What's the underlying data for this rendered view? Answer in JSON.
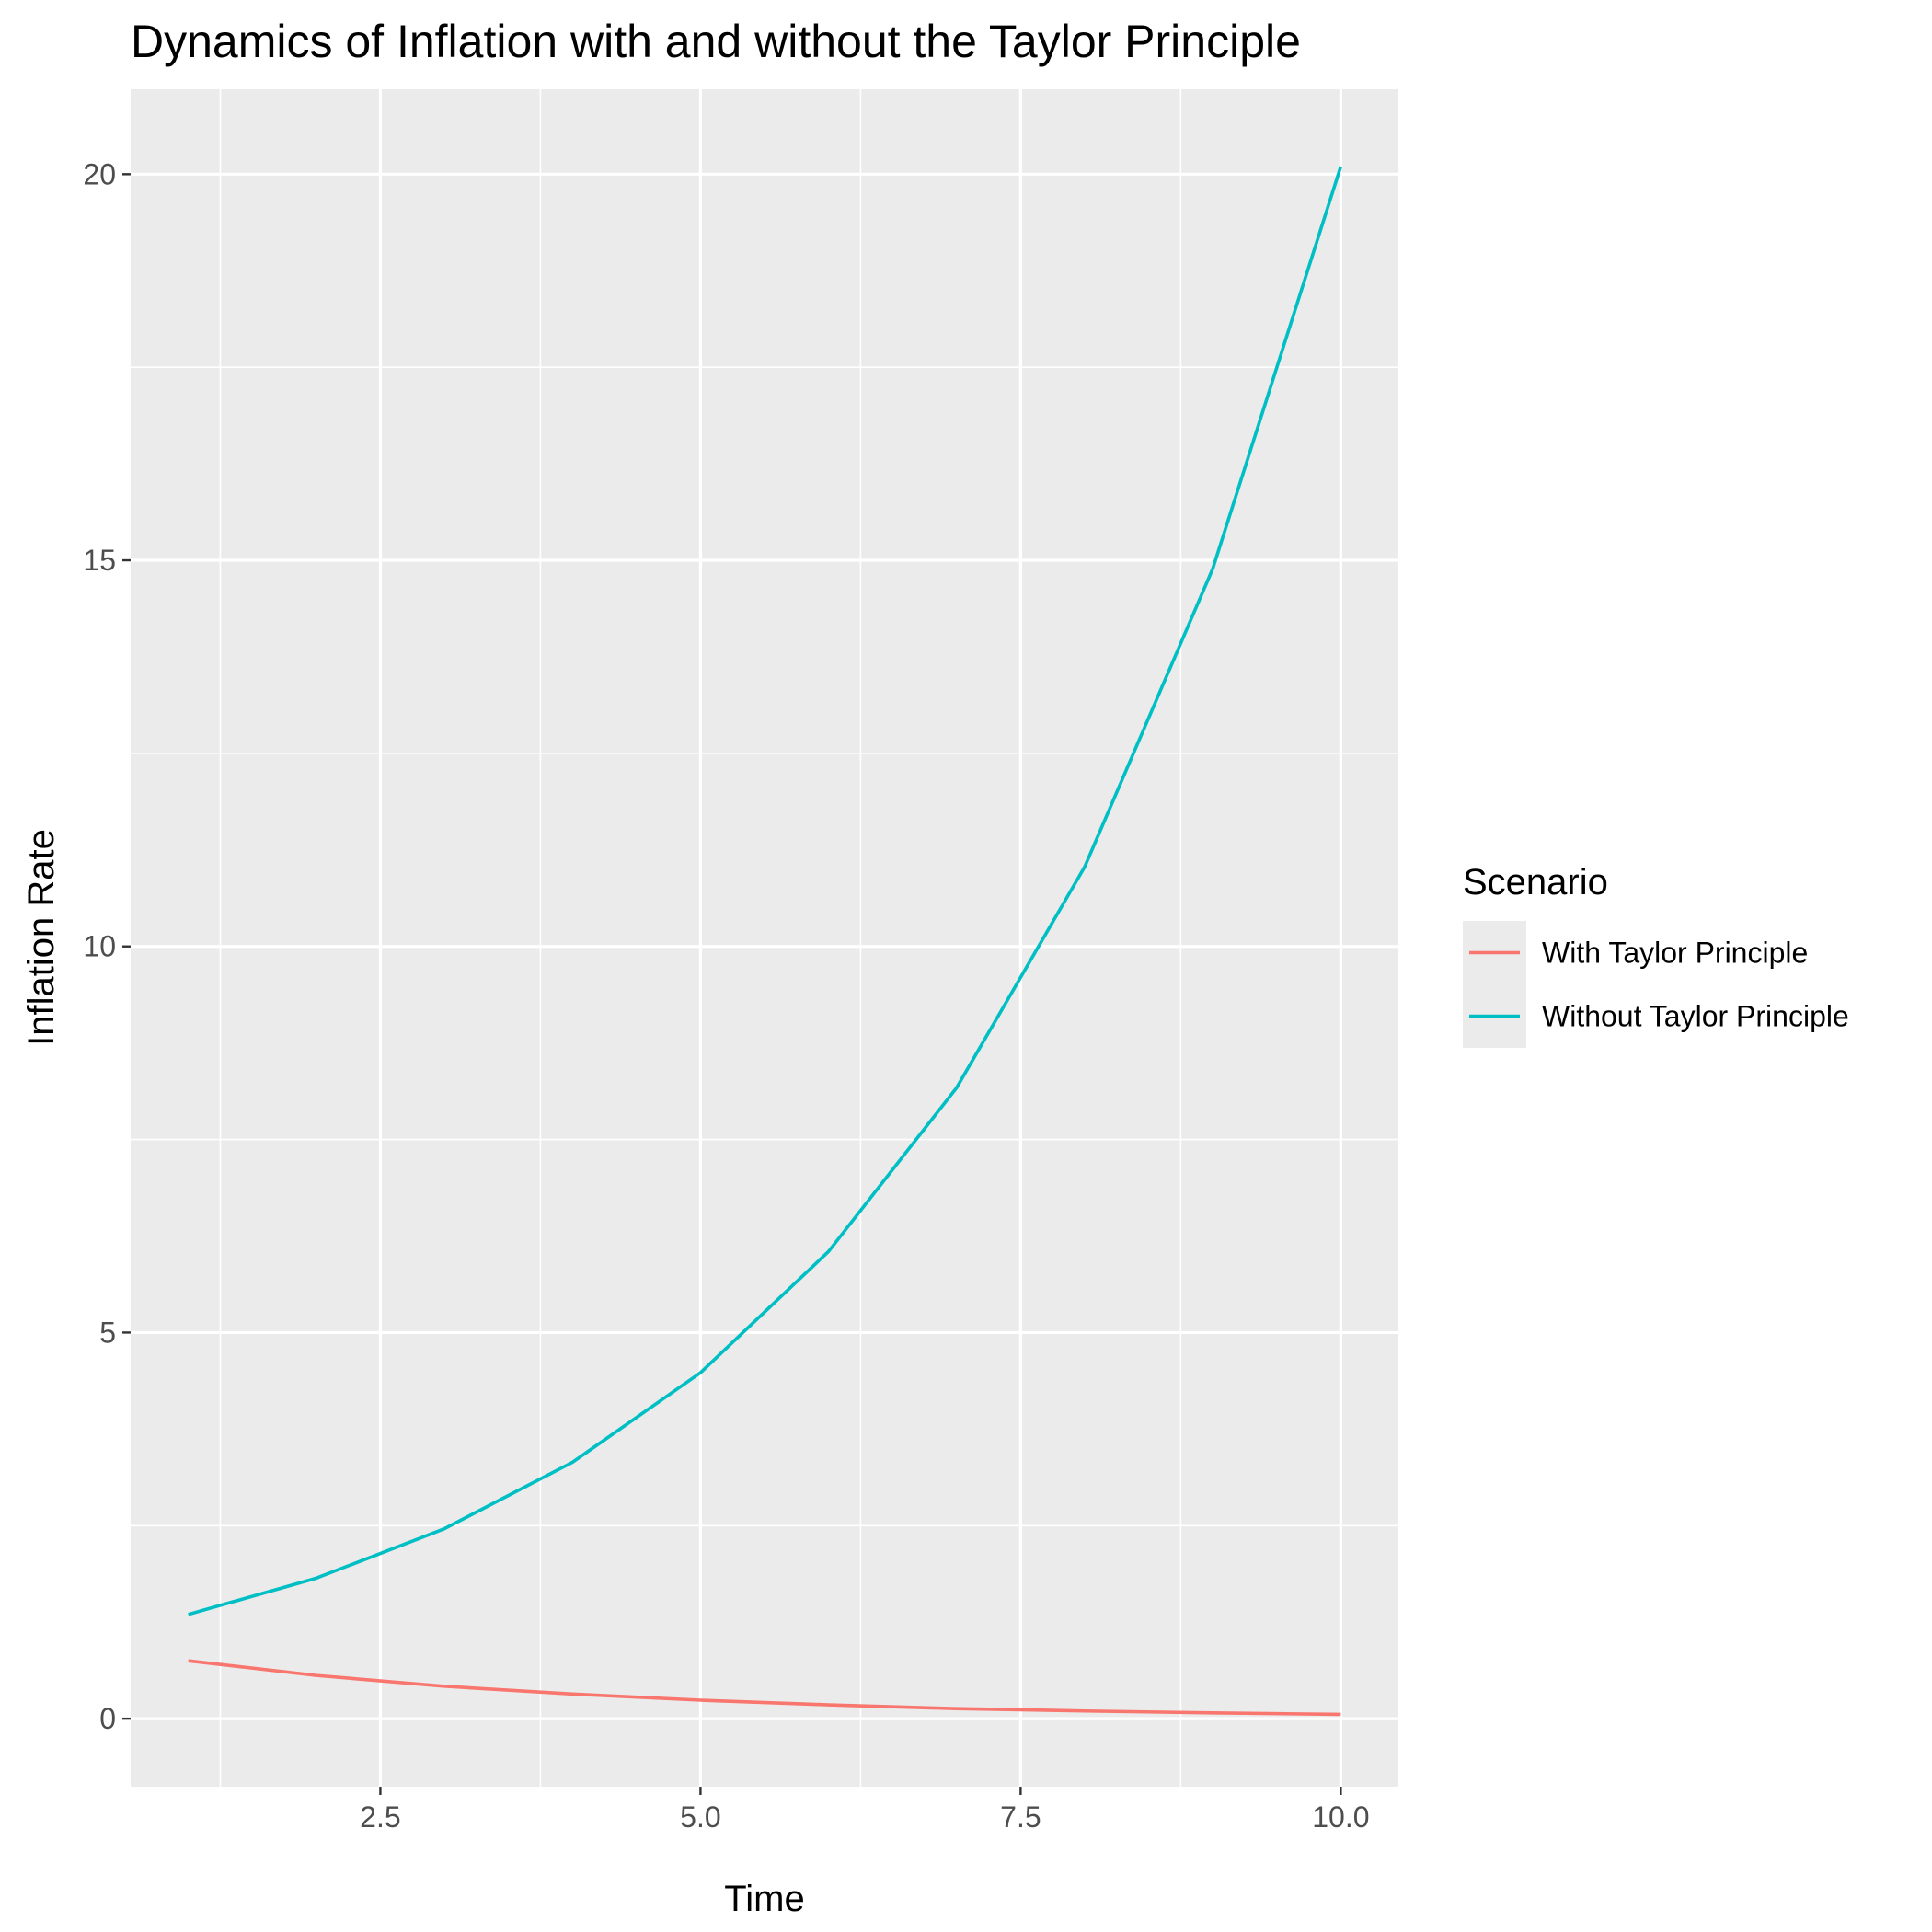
{
  "chart_data": {
    "type": "line",
    "title": "Dynamics of Inflation with and without the Taylor Principle",
    "xlabel": "Time",
    "ylabel": "Inflation Rate",
    "xlim": [
      0.55,
      10.45
    ],
    "ylim": [
      -0.88,
      21.1
    ],
    "x_ticks": [
      {
        "value": 2.5,
        "label": "2.5"
      },
      {
        "value": 5.0,
        "label": "5.0"
      },
      {
        "value": 7.5,
        "label": "7.5"
      },
      {
        "value": 10.0,
        "label": "10.0"
      }
    ],
    "y_ticks": [
      {
        "value": 0,
        "label": "0"
      },
      {
        "value": 5,
        "label": "5"
      },
      {
        "value": 10,
        "label": "10"
      },
      {
        "value": 15,
        "label": "15"
      },
      {
        "value": 20,
        "label": "20"
      }
    ],
    "grid": true,
    "legend": {
      "title": "Scenario",
      "position": "right"
    },
    "x": [
      1,
      2,
      3,
      4,
      5,
      6,
      7,
      8,
      9,
      10
    ],
    "series": [
      {
        "name": "With Taylor Principle",
        "color": "#F8766D",
        "values": [
          0.75,
          0.56,
          0.42,
          0.32,
          0.24,
          0.18,
          0.13,
          0.1,
          0.075,
          0.056
        ]
      },
      {
        "name": "Without Taylor Principle",
        "color": "#00BFC4",
        "values": [
          1.35,
          1.82,
          2.46,
          3.32,
          4.48,
          6.05,
          8.17,
          11.03,
          14.89,
          20.1
        ]
      }
    ],
    "panel_background": "#EBEBEB",
    "grid_color": "#FFFFFF"
  }
}
